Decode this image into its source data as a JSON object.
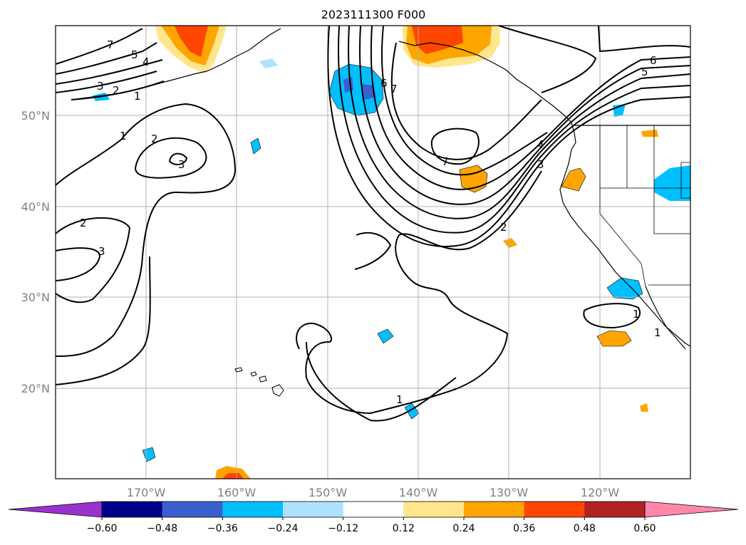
{
  "title": "2023111300 F000",
  "map": {
    "lat_labels": [
      "50°N",
      "40°N",
      "30°N",
      "20°N"
    ],
    "lon_labels": [
      "170°W",
      "160°W",
      "150°W",
      "140°W",
      "130°W",
      "120°W"
    ],
    "lat_values": [
      50,
      40,
      30,
      20
    ],
    "lon_values": [
      -170,
      -160,
      -150,
      -140,
      -130,
      -120
    ],
    "extent": {
      "lon_min": -180,
      "lon_max": -110,
      "lat_min": 10,
      "lat_max": 60
    },
    "grid": true,
    "contour_labels": [
      "1",
      "2",
      "3",
      "4",
      "5",
      "6",
      "7"
    ]
  },
  "colorbar": {
    "tick_labels": [
      "−0.60",
      "−0.48",
      "−0.36",
      "−0.24",
      "−0.12",
      "0.12",
      "0.24",
      "0.36",
      "0.48",
      "0.60"
    ],
    "colors": {
      "under": "#9932cc",
      "bins": [
        "#00008b",
        "#3a5fcd",
        "#00bfff",
        "#b0e2ff",
        "#ffffff",
        "#ffe68c",
        "#ffa500",
        "#ff4500",
        "#b22222"
      ],
      "over": "#ff88aa"
    }
  }
}
